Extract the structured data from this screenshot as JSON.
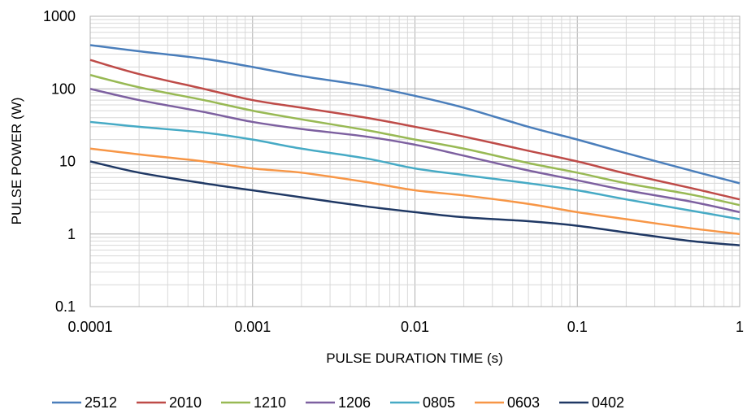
{
  "chart_data": {
    "type": "line",
    "title": "",
    "xlabel": "PULSE DURATION TIME (s)",
    "ylabel": "PULSE POWER (W)",
    "x_scale": "log",
    "y_scale": "log",
    "xlim": [
      0.0001,
      1
    ],
    "ylim": [
      0.1,
      1000
    ],
    "grid": true,
    "legend_position": "bottom",
    "x_ticks": [
      "0.0001",
      "0.001",
      "0.01",
      "0.1",
      "1"
    ],
    "y_ticks": [
      "0.1",
      "1",
      "10",
      "100",
      "1000"
    ],
    "series": [
      {
        "name": "2512",
        "color": "#4a7ebb",
        "points": [
          [
            0.0001,
            400
          ],
          [
            0.0002,
            330
          ],
          [
            0.0005,
            260
          ],
          [
            0.001,
            200
          ],
          [
            0.002,
            150
          ],
          [
            0.005,
            110
          ],
          [
            0.01,
            80
          ],
          [
            0.02,
            55
          ],
          [
            0.05,
            30
          ],
          [
            0.1,
            20
          ],
          [
            0.2,
            13
          ],
          [
            0.5,
            7.5
          ],
          [
            1,
            5
          ]
        ]
      },
      {
        "name": "2010",
        "color": "#be4b48",
        "points": [
          [
            0.0001,
            250
          ],
          [
            0.0002,
            160
          ],
          [
            0.0005,
            100
          ],
          [
            0.001,
            70
          ],
          [
            0.002,
            55
          ],
          [
            0.005,
            40
          ],
          [
            0.01,
            30
          ],
          [
            0.02,
            22
          ],
          [
            0.05,
            14
          ],
          [
            0.1,
            10
          ],
          [
            0.2,
            6.8
          ],
          [
            0.5,
            4.3
          ],
          [
            1,
            3
          ]
        ]
      },
      {
        "name": "1210",
        "color": "#98b954",
        "points": [
          [
            0.0001,
            155
          ],
          [
            0.0002,
            105
          ],
          [
            0.0005,
            70
          ],
          [
            0.001,
            50
          ],
          [
            0.002,
            38
          ],
          [
            0.005,
            27
          ],
          [
            0.01,
            20
          ],
          [
            0.02,
            15
          ],
          [
            0.05,
            9.5
          ],
          [
            0.1,
            7
          ],
          [
            0.2,
            5
          ],
          [
            0.5,
            3.5
          ],
          [
            1,
            2.5
          ]
        ]
      },
      {
        "name": "1206",
        "color": "#7d60a0",
        "points": [
          [
            0.0001,
            100
          ],
          [
            0.0002,
            70
          ],
          [
            0.0005,
            48
          ],
          [
            0.001,
            35
          ],
          [
            0.002,
            28
          ],
          [
            0.005,
            22
          ],
          [
            0.01,
            17
          ],
          [
            0.02,
            12
          ],
          [
            0.05,
            7.5
          ],
          [
            0.1,
            5.5
          ],
          [
            0.2,
            4
          ],
          [
            0.5,
            2.8
          ],
          [
            1,
            2
          ]
        ]
      },
      {
        "name": "0805",
        "color": "#46aac5",
        "points": [
          [
            0.0001,
            35
          ],
          [
            0.0002,
            30
          ],
          [
            0.0005,
            25
          ],
          [
            0.001,
            20
          ],
          [
            0.002,
            15
          ],
          [
            0.005,
            11
          ],
          [
            0.01,
            8
          ],
          [
            0.02,
            6.5
          ],
          [
            0.05,
            5
          ],
          [
            0.1,
            4
          ],
          [
            0.2,
            3
          ],
          [
            0.5,
            2.1
          ],
          [
            1,
            1.6
          ]
        ]
      },
      {
        "name": "0603",
        "color": "#f79646",
        "points": [
          [
            0.0001,
            15
          ],
          [
            0.0002,
            12.5
          ],
          [
            0.0005,
            10
          ],
          [
            0.001,
            8
          ],
          [
            0.002,
            7
          ],
          [
            0.005,
            5.2
          ],
          [
            0.01,
            4
          ],
          [
            0.02,
            3.4
          ],
          [
            0.05,
            2.6
          ],
          [
            0.1,
            2
          ],
          [
            0.2,
            1.6
          ],
          [
            0.5,
            1.2
          ],
          [
            1,
            1
          ]
        ]
      },
      {
        "name": "0402",
        "color": "#1f3864",
        "points": [
          [
            0.0001,
            10
          ],
          [
            0.0002,
            7
          ],
          [
            0.0005,
            5
          ],
          [
            0.001,
            4
          ],
          [
            0.002,
            3.2
          ],
          [
            0.005,
            2.4
          ],
          [
            0.01,
            2
          ],
          [
            0.02,
            1.7
          ],
          [
            0.05,
            1.5
          ],
          [
            0.1,
            1.3
          ],
          [
            0.2,
            1.05
          ],
          [
            0.5,
            0.8
          ],
          [
            1,
            0.7
          ]
        ]
      }
    ]
  }
}
